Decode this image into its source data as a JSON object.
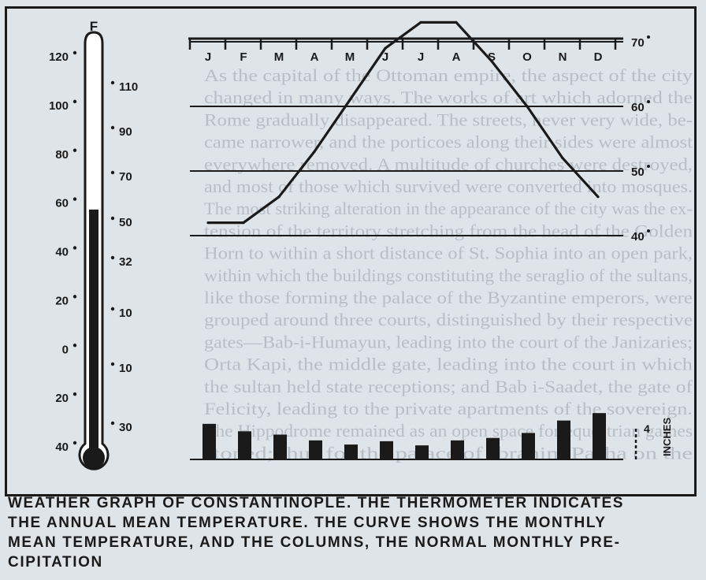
{
  "chart_data": {
    "type": "line",
    "subtype": "line with precipitation columns and thermometer",
    "months": [
      "J",
      "F",
      "M",
      "A",
      "M",
      "J",
      "J",
      "A",
      "S",
      "O",
      "N",
      "D"
    ],
    "temperature": {
      "unit": "F",
      "y_reference_lines": [
        40,
        50,
        60,
        70
      ],
      "y_labels": [
        "70",
        "60",
        "50",
        "40"
      ],
      "values": [
        42,
        42,
        46,
        53,
        61,
        69,
        73,
        73,
        67,
        60,
        52,
        46
      ]
    },
    "precipitation": {
      "unit_label": "INCHES",
      "scale_bar_label": "4",
      "scale_bar_inches": 4,
      "values": [
        4.3,
        3.4,
        3.0,
        2.3,
        1.8,
        2.2,
        1.7,
        2.3,
        2.6,
        3.2,
        4.7,
        5.6
      ]
    },
    "thermometer": {
      "unit": "F",
      "annual_mean_f": 57,
      "fahrenheit_ticks": [
        "120°",
        "100°",
        "80°",
        "60°",
        "40°",
        "20°",
        "0°",
        "20°",
        "40°"
      ],
      "celsius_ticks": [
        "110°",
        "90°",
        "70°",
        "50°",
        "32°",
        "10°",
        "10°",
        "30°"
      ]
    }
  },
  "caption": "Weather graph of Constantinople. The thermometer indicates\nthe annual mean temperature. The curve shows the monthly\nmean temperature, and the columns, the normal monthly pre-\ncipitation",
  "background_text": [
    "As the capital of the Ottoman empire, the aspect of the city",
    "changed in many ways. The works of art which adorned the",
    "Rome gradually disappeared. The streets, never very wide, be-",
    "came narrower, and the porticoes along their sides were almost",
    "everywhere removed. A multitude of churches were destroyed,",
    "and most of those which survived were converted into mosques.",
    "The most striking alteration in the appearance of the city was the ex-",
    "tension of the territory stretching from the head of the Golden",
    "Horn to within a short distance of St. Sophia into an open park,",
    "within which the buildings constituting the seraglio of the sultans,",
    "like those forming the palace of the Byzantine emperors, were",
    "grouped around three courts, distinguished by their respective",
    "gates—Bab-i-Humayun, leading into the court of the Janizaries;",
    "Orta Kapi, the middle gate, leading into the court in which",
    "the sultan held state receptions; and Bab i-Saadet, the gate of",
    "Felicity, leading to the private apartments of the sovereign.",
    "The Hippodrome remained as an open space for equestrian games",
    "stoned; thus for the palace of Ibrahim Pasha on the"
  ]
}
